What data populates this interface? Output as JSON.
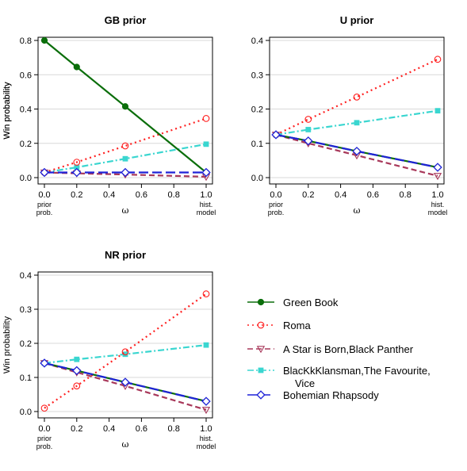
{
  "colors": {
    "Green Book": "#0b6e0b",
    "Roma": "#ff2020",
    "A Star is Born,Black Panther": "#a8385a",
    "BlacKkKlansman,The Favourite,Vice": "#3ad6d0",
    "Bohemian Rhapsody": "#1e22d8"
  },
  "legend": [
    {
      "label": "Green Book",
      "key": "Green Book",
      "dash": "solid",
      "marker": "filled-circle"
    },
    {
      "label": "Roma",
      "key": "Roma",
      "dash": "dotted",
      "marker": "open-circle"
    },
    {
      "label": "A Star is Born,Black Panther",
      "key": "A Star is Born,Black Panther",
      "dash": "dashed",
      "marker": "open-triangle-down"
    },
    {
      "label": "BlacKkKlansman,The Favourite,",
      "label2": "Vice",
      "key": "BlacKkKlansman,The Favourite,Vice",
      "dash": "dashdot",
      "marker": "filled-square"
    },
    {
      "label": "Bohemian Rhapsody",
      "key": "Bohemian Rhapsody",
      "dash": "longdash",
      "marker": "open-diamond"
    }
  ],
  "chart_data": [
    {
      "type": "line",
      "title": "GB prior",
      "xlabel": "ω",
      "ylabel": "Win probability",
      "x": [
        0.0,
        0.2,
        0.5,
        1.0
      ],
      "xlim": [
        0,
        1
      ],
      "ylim": [
        0,
        0.8
      ],
      "yticks": [
        "0.0",
        "0.2",
        "0.4",
        "0.6",
        "0.8"
      ],
      "ytick_values": [
        0,
        0.2,
        0.4,
        0.6,
        0.8
      ],
      "xticks": [
        "0.0",
        "0.2",
        "0.4",
        "0.6",
        "0.8",
        "1.0"
      ],
      "xtick_values": [
        0,
        0.2,
        0.4,
        0.6,
        0.8,
        1.0
      ],
      "x_end_labels": {
        "left": [
          "prior",
          "prob."
        ],
        "right": [
          "hist.",
          "model"
        ]
      },
      "grid": true,
      "series": [
        {
          "name": "BlacKkKlansman,The Favourite,Vice",
          "values": [
            0.03,
            0.06,
            0.11,
            0.195
          ]
        },
        {
          "name": "A Star is Born,Black Panther",
          "values": [
            0.03,
            0.025,
            0.018,
            0.005
          ]
        },
        {
          "name": "Roma",
          "values": [
            0.03,
            0.09,
            0.185,
            0.345
          ]
        },
        {
          "name": "Green Book",
          "values": [
            0.8,
            0.645,
            0.415,
            0.03
          ]
        },
        {
          "name": "Bohemian Rhapsody",
          "values": [
            0.03,
            0.03,
            0.03,
            0.03
          ]
        }
      ]
    },
    {
      "type": "line",
      "title": "U prior",
      "xlabel": "ω",
      "ylabel": "Win probability",
      "x": [
        0.0,
        0.2,
        0.5,
        1.0
      ],
      "xlim": [
        0,
        1
      ],
      "ylim": [
        0,
        0.4
      ],
      "yticks": [
        "0.0",
        "0.1",
        "0.2",
        "0.3",
        "0.4"
      ],
      "ytick_values": [
        0,
        0.1,
        0.2,
        0.3,
        0.4
      ],
      "xticks": [
        "0.0",
        "0.2",
        "0.4",
        "0.6",
        "0.8",
        "1.0"
      ],
      "xtick_values": [
        0,
        0.2,
        0.4,
        0.6,
        0.8,
        1.0
      ],
      "x_end_labels": {
        "left": [
          "prior",
          "prob."
        ],
        "right": [
          "hist.",
          "model"
        ]
      },
      "grid": true,
      "series": [
        {
          "name": "BlacKkKlansman,The Favourite,Vice",
          "values": [
            0.125,
            0.14,
            0.16,
            0.195
          ]
        },
        {
          "name": "A Star is Born,Black Panther",
          "values": [
            0.125,
            0.1,
            0.065,
            0.005
          ]
        },
        {
          "name": "Roma",
          "values": [
            0.125,
            0.17,
            0.235,
            0.345
          ]
        },
        {
          "name": "Green Book",
          "values": [
            0.125,
            0.107,
            0.077,
            0.03
          ]
        },
        {
          "name": "Bohemian Rhapsody",
          "values": [
            0.125,
            0.107,
            0.077,
            0.03
          ]
        }
      ]
    },
    {
      "type": "line",
      "title": "NR prior",
      "xlabel": "ω",
      "ylabel": "Win probability",
      "x": [
        0.0,
        0.2,
        0.5,
        1.0
      ],
      "xlim": [
        0,
        1
      ],
      "ylim": [
        0,
        0.4
      ],
      "yticks": [
        "0.0",
        "0.1",
        "0.2",
        "0.3",
        "0.4"
      ],
      "ytick_values": [
        0,
        0.1,
        0.2,
        0.3,
        0.4
      ],
      "xticks": [
        "0.0",
        "0.2",
        "0.4",
        "0.6",
        "0.8",
        "1.0"
      ],
      "xtick_values": [
        0,
        0.2,
        0.4,
        0.6,
        0.8,
        1.0
      ],
      "x_end_labels": {
        "left": [
          "prior",
          "prob."
        ],
        "right": [
          "hist.",
          "model"
        ]
      },
      "grid": true,
      "series": [
        {
          "name": "BlacKkKlansman,The Favourite,Vice",
          "values": [
            0.142,
            0.153,
            0.168,
            0.195
          ]
        },
        {
          "name": "A Star is Born,Black Panther",
          "values": [
            0.142,
            0.115,
            0.075,
            0.005
          ]
        },
        {
          "name": "Roma",
          "values": [
            0.01,
            0.075,
            0.175,
            0.345
          ]
        },
        {
          "name": "Green Book",
          "values": [
            0.142,
            0.12,
            0.086,
            0.03
          ]
        },
        {
          "name": "Bohemian Rhapsody",
          "values": [
            0.142,
            0.12,
            0.086,
            0.03
          ]
        }
      ]
    }
  ]
}
